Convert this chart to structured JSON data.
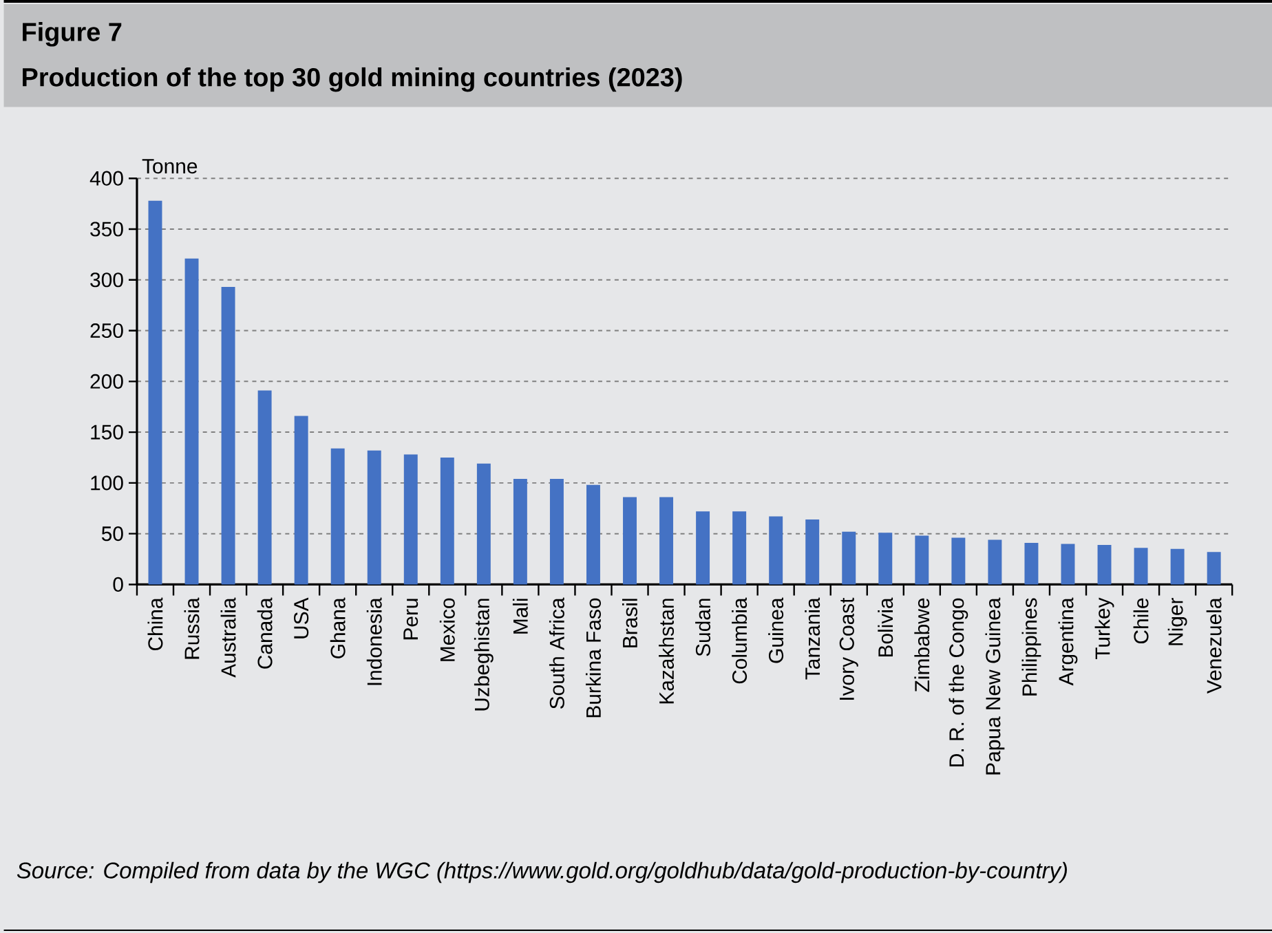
{
  "chart_data": {
    "type": "bar",
    "title": "Figure 7",
    "subtitle": "Production of the top 30 gold mining countries (2023)",
    "ylabel": "Tonne",
    "categories": [
      "China",
      "Russia",
      "Australia",
      "Canada",
      "USA",
      "Ghana",
      "Indonesia",
      "Peru",
      "Mexico",
      "Uzbeghistan",
      "Mali",
      "South Africa",
      "Burkina Faso",
      "Brasil",
      "Kazakhstan",
      "Sudan",
      "Columbia",
      "Guinea",
      "Tanzania",
      "Ivory Coast",
      "Bolivia",
      "Zimbabwe",
      "D. R. of the Congo",
      "Papua New Guinea",
      "Philippines",
      "Argentina",
      "Turkey",
      "Chile",
      "Niger",
      "Venezuela"
    ],
    "values": [
      378,
      321,
      293,
      191,
      166,
      134,
      132,
      128,
      125,
      119,
      104,
      104,
      98,
      86,
      86,
      72,
      72,
      67,
      64,
      52,
      51,
      48,
      46,
      44,
      41,
      40,
      39,
      36,
      35,
      32
    ],
    "color": "#4472c4",
    "ylim": [
      0,
      400
    ],
    "yticks": [
      0,
      50,
      100,
      150,
      200,
      250,
      300,
      350,
      400
    ],
    "grid": "y",
    "annotations": [
      "Source: Compiled from data by the WGC (https://www.gold.org/goldhub/data/gold-production-by-country)"
    ]
  }
}
